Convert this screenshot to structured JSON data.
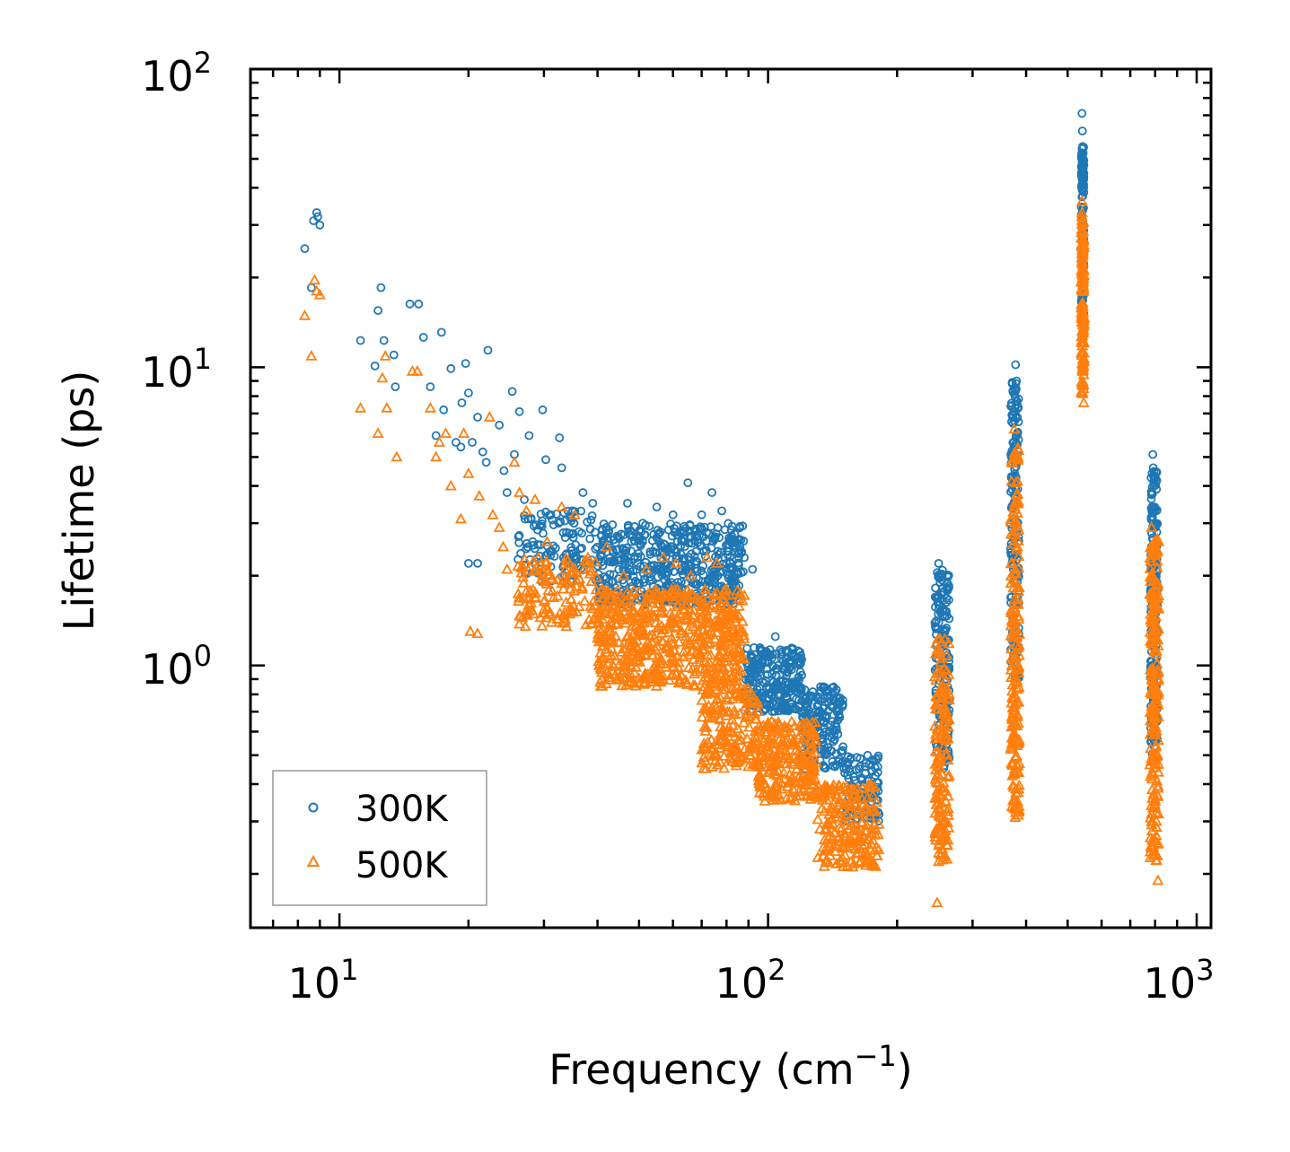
{
  "chart_data": {
    "type": "scatter",
    "title": "",
    "xlabel": "Frequency (cm",
    "xlabel_sup": "−1",
    "xlabel_end": ")",
    "ylabel": "Lifetime (ps)",
    "xscale": "log",
    "yscale": "log",
    "xlim": [
      6.2,
      1080
    ],
    "ylim": [
      0.132,
      100
    ],
    "x_ticks": [
      {
        "base": "10",
        "exp": "1",
        "value": 10
      },
      {
        "base": "10",
        "exp": "2",
        "value": 100
      },
      {
        "base": "10",
        "exp": "3",
        "value": 1000
      }
    ],
    "y_ticks": [
      {
        "base": "10",
        "exp": "0",
        "value": 1
      },
      {
        "base": "10",
        "exp": "1",
        "value": 10
      },
      {
        "base": "10",
        "exp": "2",
        "value": 100
      }
    ],
    "legend": {
      "position": "lower-left"
    },
    "series": [
      {
        "name": "300K",
        "marker": "circle",
        "color": "#1f77b4",
        "points": [
          [
            8.3,
            25
          ],
          [
            8.7,
            31
          ],
          [
            8.85,
            33
          ],
          [
            9.0,
            30
          ],
          [
            8.9,
            32
          ],
          [
            8.6,
            18.5
          ],
          [
            11.2,
            12.3
          ],
          [
            12.1,
            10.1
          ],
          [
            12.5,
            18.5
          ],
          [
            12.3,
            15.5
          ],
          [
            12.7,
            12.3
          ],
          [
            13.5,
            8.6
          ],
          [
            13.4,
            11.0
          ],
          [
            14.6,
            16.3
          ],
          [
            15.3,
            16.3
          ],
          [
            15.7,
            12.6
          ],
          [
            16.3,
            8.6
          ],
          [
            16.8,
            5.9
          ],
          [
            17.3,
            13.1
          ],
          [
            17.5,
            7.2
          ],
          [
            18.2,
            9.9
          ],
          [
            18.7,
            5.6
          ],
          [
            19.3,
            7.6
          ],
          [
            19.7,
            10.3
          ],
          [
            20.0,
            8.2
          ],
          [
            20.4,
            5.6
          ],
          [
            21.0,
            6.8
          ],
          [
            21.6,
            5.2
          ],
          [
            22.2,
            11.4
          ],
          [
            22.0,
            4.8
          ],
          [
            23.6,
            6.4
          ],
          [
            24.2,
            4.5
          ],
          [
            25.3,
            8.3
          ],
          [
            25.6,
            5.1
          ],
          [
            26.3,
            7.1
          ],
          [
            27.7,
            5.9
          ],
          [
            29.8,
            7.2
          ],
          [
            30.3,
            4.9
          ],
          [
            32.6,
            5.8
          ],
          [
            33.0,
            4.6
          ],
          [
            20.0,
            2.2
          ],
          [
            21.0,
            2.2
          ],
          [
            19.2,
            5.4
          ],
          [
            24.6,
            3.8
          ],
          [
            27.0,
            3.6
          ],
          [
            31.0,
            3.2
          ],
          [
            35.0,
            3.3
          ],
          [
            37.0,
            3.8
          ],
          [
            39.0,
            3.5
          ],
          [
            42.0,
            2.9
          ],
          [
            47.0,
            3.5
          ],
          [
            51.0,
            3.0
          ],
          [
            55.0,
            3.4
          ],
          [
            60.0,
            3.2
          ],
          [
            65.0,
            4.1
          ],
          [
            70.0,
            3.2
          ],
          [
            74.0,
            3.8
          ],
          [
            78.0,
            3.3
          ],
          [
            84.0,
            2.6
          ],
          [
            88.0,
            2.3
          ],
          [
            92.0,
            2.1
          ],
          [
            98.0,
            1.1
          ],
          [
            104.0,
            1.25
          ],
          [
            112.0,
            0.98
          ],
          [
            125.0,
            0.78
          ],
          [
            140.0,
            0.52
          ],
          [
            155.0,
            0.44
          ],
          [
            165.0,
            0.42
          ],
          [
            175.0,
            0.4
          ],
          [
            176.0,
            0.37
          ],
          [
            180.0,
            0.39
          ],
          [
            250.0,
            2.2
          ],
          [
            252.0,
            1.9
          ],
          [
            253.0,
            1.5
          ],
          [
            254.0,
            1.2
          ],
          [
            256.0,
            0.95
          ],
          [
            258.0,
            0.8
          ],
          [
            260.0,
            0.62
          ],
          [
            262.0,
            0.5
          ],
          [
            370.0,
            1.7
          ],
          [
            375.0,
            1.3
          ],
          [
            378.0,
            10.2
          ],
          [
            380.0,
            9.0
          ],
          [
            381.0,
            7.5
          ],
          [
            382.0,
            6.0
          ],
          [
            540.0,
            71
          ],
          [
            541.0,
            62
          ],
          [
            542.0,
            55
          ],
          [
            543.0,
            50
          ],
          [
            544.0,
            45
          ],
          [
            545.0,
            40
          ],
          [
            790.0,
            5.1
          ],
          [
            792.0,
            4.6
          ],
          [
            795.0,
            4.0
          ],
          [
            798.0,
            3.4
          ],
          [
            800.0,
            2.9
          ],
          [
            802.0,
            2.2
          ],
          [
            805.0,
            1.6
          ]
        ],
        "clusters": [
          {
            "x": [
              26,
              40
            ],
            "y": [
              1.9,
              3.3
            ],
            "n": 120
          },
          {
            "x": [
              40,
              88
            ],
            "y": [
              1.6,
              3.0
            ],
            "n": 520
          },
          {
            "x": [
              88,
              120
            ],
            "y": [
              0.7,
              1.15
            ],
            "n": 260
          },
          {
            "x": [
              120,
              150
            ],
            "y": [
              0.45,
              0.85
            ],
            "n": 180
          },
          {
            "x": [
              150,
              182
            ],
            "y": [
              0.3,
              0.5
            ],
            "n": 90
          },
          {
            "x": [
              245,
              265
            ],
            "y": [
              0.45,
              2.1
            ],
            "n": 160
          },
          {
            "x": [
              368,
              385
            ],
            "y": [
              0.9,
              9.0
            ],
            "n": 180
          },
          {
            "x": [
              538,
              546
            ],
            "y": [
              14,
              55
            ],
            "n": 140
          },
          {
            "x": [
              780,
              810
            ],
            "y": [
              0.5,
              4.5
            ],
            "n": 200
          }
        ]
      },
      {
        "name": "500K",
        "marker": "triangle",
        "color": "#ff7f0e",
        "points": [
          [
            8.3,
            14.9
          ],
          [
            8.6,
            10.9
          ],
          [
            8.75,
            19.6
          ],
          [
            8.85,
            18.0
          ],
          [
            9.0,
            17.5
          ],
          [
            11.2,
            7.3
          ],
          [
            12.3,
            6.0
          ],
          [
            12.6,
            9.2
          ],
          [
            12.8,
            10.9
          ],
          [
            12.9,
            7.3
          ],
          [
            13.6,
            5.0
          ],
          [
            14.8,
            9.7
          ],
          [
            15.2,
            9.7
          ],
          [
            16.3,
            7.3
          ],
          [
            16.8,
            5.0
          ],
          [
            17.1,
            5.6
          ],
          [
            17.7,
            6.0
          ],
          [
            18.2,
            4.0
          ],
          [
            19.2,
            3.1
          ],
          [
            19.5,
            6.0
          ],
          [
            20.2,
            1.3
          ],
          [
            21.0,
            1.28
          ],
          [
            20.0,
            4.4
          ],
          [
            21.2,
            3.7
          ],
          [
            22.4,
            6.8
          ],
          [
            22.8,
            3.2
          ],
          [
            23.6,
            2.9
          ],
          [
            24.1,
            2.5
          ],
          [
            24.6,
            2.1
          ],
          [
            25.6,
            4.8
          ],
          [
            26.3,
            3.8
          ],
          [
            27.3,
            3.3
          ],
          [
            28.6,
            3.6
          ],
          [
            30.5,
            2.6
          ],
          [
            33.0,
            3.4
          ],
          [
            35.4,
            3.2
          ],
          [
            38.0,
            2.3
          ],
          [
            42.0,
            2.5
          ],
          [
            46.0,
            2.0
          ],
          [
            52.0,
            2.1
          ],
          [
            57.0,
            2.3
          ],
          [
            61.0,
            2.2
          ],
          [
            66.0,
            2.0
          ],
          [
            72.0,
            2.3
          ],
          [
            76.0,
            2.2
          ],
          [
            80.0,
            1.8
          ],
          [
            84.0,
            1.4
          ],
          [
            88.0,
            1.05
          ],
          [
            95.0,
            0.7
          ],
          [
            102.0,
            0.65
          ],
          [
            112.0,
            0.55
          ],
          [
            125.0,
            0.48
          ],
          [
            140.0,
            0.38
          ],
          [
            150.0,
            0.3
          ],
          [
            160.0,
            0.29
          ],
          [
            170.0,
            0.28
          ],
          [
            178.0,
            0.27
          ],
          [
            248.0,
            0.16
          ],
          [
            250.0,
            0.22
          ],
          [
            254.0,
            1.2
          ],
          [
            256.0,
            0.8
          ],
          [
            258.0,
            0.6
          ],
          [
            260.0,
            0.35
          ],
          [
            262.0,
            0.25
          ],
          [
            375.0,
            6.2
          ],
          [
            377.0,
            5.0
          ],
          [
            379.0,
            3.5
          ],
          [
            381.0,
            2.5
          ],
          [
            383.0,
            1.6
          ],
          [
            540.0,
            36
          ],
          [
            541.0,
            30
          ],
          [
            542.0,
            22
          ],
          [
            543.0,
            15
          ],
          [
            544.0,
            10
          ],
          [
            545.0,
            7.6
          ],
          [
            785.0,
            2.9
          ],
          [
            790.0,
            2.4
          ],
          [
            795.0,
            1.6
          ],
          [
            800.0,
            0.35
          ],
          [
            805.0,
            0.3
          ],
          [
            810.0,
            0.23
          ],
          [
            812.0,
            0.19
          ]
        ],
        "clusters": [
          {
            "x": [
              26,
              40
            ],
            "y": [
              1.35,
              2.3
            ],
            "n": 140
          },
          {
            "x": [
              40,
              88
            ],
            "y": [
              0.85,
              1.8
            ],
            "n": 600
          },
          {
            "x": [
              70,
              95
            ],
            "y": [
              0.45,
              0.85
            ],
            "n": 180
          },
          {
            "x": [
              95,
              130
            ],
            "y": [
              0.35,
              0.65
            ],
            "n": 240
          },
          {
            "x": [
              130,
              182
            ],
            "y": [
              0.21,
              0.4
            ],
            "n": 200
          },
          {
            "x": [
              245,
              265
            ],
            "y": [
              0.22,
              1.25
            ],
            "n": 160
          },
          {
            "x": [
              368,
              386
            ],
            "y": [
              0.3,
              5.5
            ],
            "n": 200
          },
          {
            "x": [
              538,
              546
            ],
            "y": [
              8,
              33
            ],
            "n": 140
          },
          {
            "x": [
              778,
              815
            ],
            "y": [
              0.22,
              2.7
            ],
            "n": 220
          }
        ]
      }
    ]
  }
}
